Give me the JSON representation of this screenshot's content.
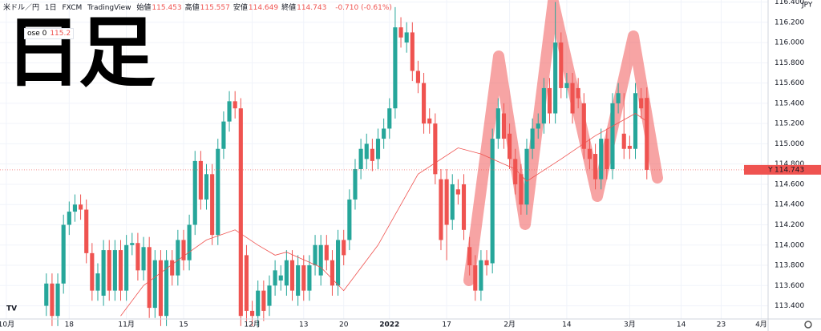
{
  "chart_data": {
    "type": "candlestick",
    "title": "日足",
    "header": {
      "symbol": "米ドル／円",
      "interval": "1日",
      "source": "FXCM",
      "platform": "TradingView",
      "ohlc": [
        {
          "label": "始値",
          "value": 115.453
        },
        {
          "label": "高値",
          "value": 115.557
        },
        {
          "label": "安値",
          "value": 114.649
        },
        {
          "label": "終値",
          "value": 114.743
        }
      ],
      "change": "-0.710 (-0.61%)"
    },
    "indicator": {
      "label": "ose 0",
      "value": 115.2
    },
    "currency": "JPY",
    "price_tag": {
      "symbol": "USDJPY",
      "value": 114.743
    },
    "up_color": "#26a69a",
    "down_color": "#ef5350",
    "ma_color": "#ef5350",
    "x": [
      7,
      8,
      9,
      10,
      11,
      12,
      13,
      14,
      15,
      16,
      17,
      18,
      19,
      20,
      21,
      22,
      23,
      24,
      25,
      26,
      27,
      28,
      29,
      30,
      31,
      32,
      33,
      34,
      35,
      36,
      37,
      38,
      39,
      40,
      41,
      42,
      43,
      44,
      45,
      46,
      47,
      48,
      49,
      50,
      51,
      52,
      53,
      54,
      55,
      56,
      57,
      58,
      59,
      60,
      61,
      62,
      63,
      64,
      65,
      66,
      67,
      68,
      69,
      70,
      71,
      72,
      73,
      74,
      75,
      76,
      77,
      78,
      79,
      80,
      81,
      82,
      83,
      84,
      85,
      86,
      87,
      88,
      89,
      90,
      91,
      92,
      93,
      94,
      95,
      96,
      97,
      98,
      99,
      100,
      101,
      102,
      103,
      104,
      105,
      106,
      107,
      108,
      109,
      110,
      111,
      112
    ],
    "open": [
      113.4,
      113.62,
      113.3,
      113.62,
      114.2,
      114.33,
      114.4,
      114.35,
      113.92,
      113.55,
      113.5,
      113.95,
      113.55,
      113.95,
      113.55,
      114.0,
      114.02,
      113.75,
      113.98,
      113.38,
      113.85,
      113.3,
      113.85,
      113.7,
      114.05,
      113.85,
      114.2,
      114.83,
      114.45,
      114.7,
      114.1,
      114.95,
      115.22,
      115.42,
      115.35,
      113.9,
      113.35,
      113.3,
      113.55,
      113.4,
      113.6,
      113.65,
      113.6,
      113.85,
      113.5,
      113.8,
      113.55,
      113.8,
      113.7,
      114.0,
      113.85,
      113.6,
      114.05,
      114.05,
      114.45,
      114.75,
      114.85,
      114.95,
      114.85,
      115.05,
      115.15,
      115.35,
      116.15,
      116.0,
      116.1,
      115.72,
      115.6,
      115.25,
      115.2,
      114.65,
      114.65,
      114.25,
      114.55,
      114.6,
      113.98,
      113.8,
      113.55,
      113.85,
      113.82,
      115.05,
      115.3,
      115.1,
      114.85,
      114.7,
      114.4,
      114.95,
      115.15,
      115.2,
      115.55,
      115.3,
      116.0,
      115.55,
      115.6,
      115.55,
      115.4,
      114.95,
      114.9,
      114.65,
      115.05,
      114.75,
      115.4,
      115.1,
      114.98,
      114.95,
      115.45,
      115.453
    ],
    "high": [
      113.72,
      113.72,
      113.72,
      114.3,
      114.43,
      114.5,
      114.5,
      114.45,
      114.02,
      113.82,
      114.05,
      114.05,
      114.05,
      114.05,
      114.1,
      114.12,
      114.12,
      114.08,
      114.08,
      113.95,
      113.95,
      113.95,
      113.95,
      114.15,
      114.15,
      114.3,
      114.93,
      114.93,
      114.8,
      114.8,
      115.05,
      115.32,
      115.52,
      115.52,
      115.45,
      114.0,
      113.45,
      113.65,
      113.65,
      113.7,
      113.85,
      113.8,
      113.95,
      113.95,
      113.9,
      113.9,
      113.9,
      114.1,
      114.1,
      114.1,
      113.95,
      114.15,
      114.15,
      114.55,
      114.85,
      115.05,
      115.1,
      115.05,
      115.15,
      115.25,
      115.45,
      116.35,
      116.25,
      116.2,
      116.2,
      115.82,
      115.7,
      115.35,
      115.3,
      114.75,
      114.75,
      114.7,
      114.65,
      114.7,
      114.08,
      113.9,
      113.95,
      113.95,
      115.15,
      115.45,
      115.4,
      115.2,
      114.95,
      114.8,
      115.05,
      115.25,
      115.3,
      115.65,
      115.65,
      116.4,
      116.1,
      115.7,
      115.7,
      115.65,
      115.5,
      115.05,
      115.0,
      115.15,
      115.15,
      115.5,
      115.6,
      115.5,
      115.08,
      115.6,
      115.55,
      115.557
    ],
    "low": [
      113.3,
      113.2,
      113.2,
      113.52,
      114.1,
      114.23,
      114.25,
      113.82,
      113.45,
      113.45,
      113.4,
      113.45,
      113.45,
      113.45,
      113.45,
      113.9,
      113.65,
      113.65,
      113.28,
      113.28,
      113.2,
      113.2,
      113.6,
      113.6,
      113.75,
      113.75,
      114.1,
      114.35,
      114.35,
      114.0,
      114.0,
      114.85,
      115.12,
      115.25,
      113.2,
      113.25,
      113.2,
      113.2,
      113.25,
      113.3,
      113.5,
      113.55,
      113.5,
      113.45,
      113.4,
      113.45,
      113.45,
      113.7,
      113.6,
      113.75,
      113.5,
      113.5,
      113.8,
      113.95,
      114.35,
      114.65,
      114.75,
      114.73,
      114.75,
      114.95,
      115.05,
      115.25,
      115.95,
      115.9,
      115.62,
      115.5,
      115.1,
      115.1,
      114.6,
      113.95,
      113.85,
      114.15,
      114.4,
      114.05,
      113.7,
      113.45,
      113.45,
      113.7,
      113.72,
      114.95,
      114.95,
      114.75,
      114.5,
      114.3,
      114.3,
      114.85,
      115.05,
      115.1,
      115.2,
      115.2,
      115.45,
      115.45,
      115.2,
      115.35,
      114.85,
      114.75,
      114.55,
      114.55,
      114.65,
      114.65,
      115.3,
      114.85,
      114.85,
      114.85,
      115.25,
      114.649
    ],
    "close": [
      113.62,
      113.3,
      113.62,
      114.2,
      114.33,
      114.4,
      114.35,
      113.92,
      113.55,
      113.72,
      113.95,
      113.55,
      113.95,
      113.55,
      114.0,
      114.02,
      113.75,
      113.98,
      113.38,
      113.85,
      113.3,
      113.85,
      113.7,
      114.05,
      113.85,
      114.2,
      114.83,
      114.45,
      114.7,
      114.1,
      114.95,
      115.22,
      115.42,
      115.35,
      113.3,
      113.35,
      113.3,
      113.55,
      113.35,
      113.6,
      113.75,
      113.7,
      113.85,
      113.55,
      113.8,
      113.55,
      113.8,
      114.0,
      114.0,
      113.85,
      113.6,
      114.05,
      113.9,
      114.45,
      114.75,
      114.95,
      115.0,
      114.83,
      115.05,
      115.15,
      115.35,
      116.15,
      116.05,
      116.1,
      115.72,
      115.6,
      115.2,
      115.2,
      114.7,
      114.05,
      114.2,
      114.6,
      114.5,
      114.15,
      113.8,
      113.55,
      113.85,
      113.8,
      115.05,
      115.35,
      115.05,
      114.85,
      114.6,
      114.4,
      114.95,
      115.15,
      115.2,
      115.55,
      115.3,
      116.0,
      115.55,
      115.6,
      115.3,
      115.45,
      114.95,
      114.85,
      114.65,
      115.05,
      114.75,
      115.4,
      115.5,
      114.95,
      114.95,
      115.5,
      115.35,
      114.743
    ],
    "ma": {
      "x": [
        20,
        24,
        30,
        35,
        40,
        44,
        47,
        49,
        55,
        59,
        65,
        72,
        79,
        83,
        89,
        91,
        97,
        103,
        110,
        112
      ],
      "values": [
        113.3,
        113.6,
        113.85,
        114.05,
        114.15,
        114.0,
        113.9,
        113.93,
        113.78,
        113.55,
        114.0,
        114.7,
        114.96,
        114.9,
        114.75,
        114.63,
        114.85,
        115.08,
        115.3,
        115.22
      ]
    },
    "xlim": [
      -1.1,
      133.2
    ],
    "ylim": [
      113.27,
      116.42
    ],
    "xticks": [
      {
        "value": 0,
        "label": "10月"
      },
      {
        "value": 11,
        "label": "18"
      },
      {
        "value": 21,
        "label": "11月"
      },
      {
        "value": 31,
        "label": "15"
      },
      {
        "value": 43,
        "label": "12月"
      },
      {
        "value": 52,
        "label": "13"
      },
      {
        "value": 59,
        "label": "20"
      },
      {
        "value": 67,
        "label": "2022"
      },
      {
        "value": 77,
        "label": "17"
      },
      {
        "value": 88,
        "label": "2月"
      },
      {
        "value": 98,
        "label": "14"
      },
      {
        "value": 109,
        "label": "3月"
      },
      {
        "value": 118,
        "label": "14"
      },
      {
        "value": 125,
        "label": "23"
      },
      {
        "value": 132,
        "label": "4月"
      }
    ],
    "yticks": [
      {
        "value": 113.4,
        "label": "113.400"
      },
      {
        "value": 113.6,
        "label": "113.600"
      },
      {
        "value": 113.8,
        "label": "113.800"
      },
      {
        "value": 114,
        "label": "114.000"
      },
      {
        "value": 114.2,
        "label": "114.200"
      },
      {
        "value": 114.4,
        "label": "114.400"
      },
      {
        "value": 114.6,
        "label": "114.600"
      },
      {
        "value": 114.8,
        "label": "114.800"
      },
      {
        "value": 115,
        "label": "115.000"
      },
      {
        "value": 115.2,
        "label": "115.200"
      },
      {
        "value": 115.4,
        "label": "115.400"
      },
      {
        "value": 115.6,
        "label": "115.600"
      },
      {
        "value": 115.8,
        "label": "115.800"
      },
      {
        "value": 116,
        "label": "116.000"
      },
      {
        "value": 116.2,
        "label": "116.200"
      },
      {
        "value": 116.4,
        "label": "116.400"
      }
    ],
    "grid": true
  }
}
